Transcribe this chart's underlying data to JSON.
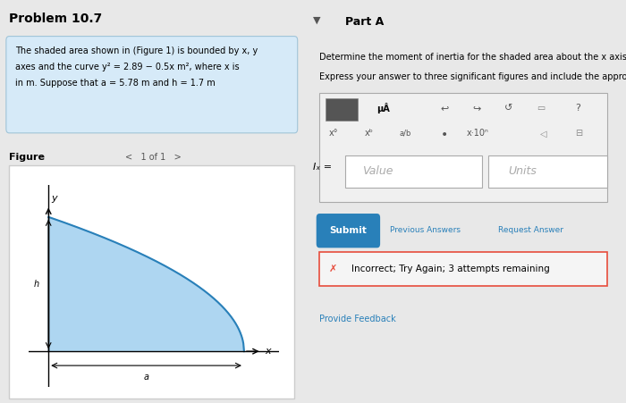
{
  "title": "Problem 10.7",
  "bg_color": "#e8e8e8",
  "panel_bg": "#ffffff",
  "left_panel_bg": "#d6eaf8",
  "problem_text_line1": "The shaded area shown in (Figure 1) is bounded by x, y",
  "problem_text_line2": "axes and the curve y² = 2.89 − 0.5x m², where x is",
  "problem_text_line3": "in m. Suppose that a = 5.78 m and h = 1.7 m",
  "figure_label": "Figure",
  "figure_nav": "<   1 of 1   >",
  "part_a_label": "Part A",
  "part_a_desc1": "Determine the moment of inertia for the shaded area about the x axis.",
  "part_a_desc2": "Express your answer to three significant figures and include the appropriate units.",
  "input_label": "Iₓ =",
  "value_placeholder": "Value",
  "units_placeholder": "Units",
  "submit_text": "Submit",
  "prev_ans_text": "Previous Answers",
  "req_ans_text": "Request Answer",
  "incorrect_text": "Incorrect; Try Again; 3 attempts remaining",
  "feedback_text": "Provide Feedback",
  "shaded_color": "#aed6f1",
  "curve_color": "#2980b9",
  "axis_color": "#000000",
  "toolbar_bg": "#d0d0d0",
  "submit_bg": "#2980b9",
  "submit_text_color": "#ffffff",
  "incorrect_bg": "#f5f5f5",
  "incorrect_border": "#e74c3c",
  "x_icon_color": "#e74c3c"
}
